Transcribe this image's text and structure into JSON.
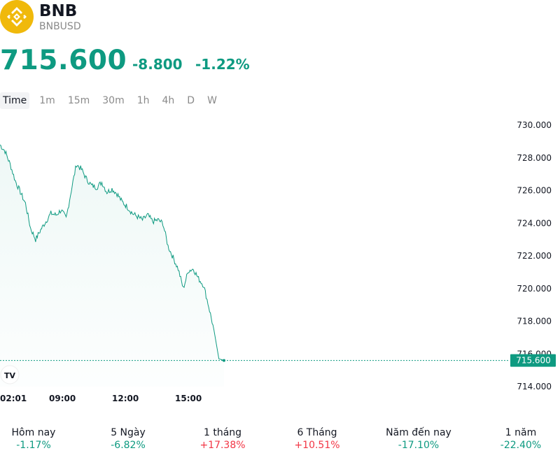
{
  "header": {
    "symbol": "BNB",
    "pair": "BNBUSD",
    "price": "715.600",
    "change": "-8.800",
    "change_pct": "-1.22%"
  },
  "colors": {
    "accent": "#0e9a81",
    "logo": "#f0b90b",
    "negative_red": "#f23645"
  },
  "tabs": [
    {
      "label": "Time",
      "active": true
    },
    {
      "label": "1m"
    },
    {
      "label": "15m"
    },
    {
      "label": "30m"
    },
    {
      "label": "1h"
    },
    {
      "label": "4h"
    },
    {
      "label": "D"
    },
    {
      "label": "W"
    }
  ],
  "chart_data": {
    "type": "area",
    "x_ticks": [
      "02:01",
      "09:00",
      "12:00",
      "15:00"
    ],
    "y_ticks": [
      "730.000",
      "728.000",
      "726.000",
      "724.000",
      "722.000",
      "720.000",
      "718.000",
      "716.000",
      "714.000"
    ],
    "ylim": [
      714,
      730
    ],
    "last_price_label": "715.600",
    "last_price": 715.6,
    "series": [
      {
        "values": [
          728.8,
          728.4,
          727.6,
          726.6,
          725.9,
          725.2,
          723.7,
          723.0,
          723.6,
          724.1,
          724.6,
          724.5,
          724.8,
          724.3,
          726.0,
          727.6,
          727.3,
          726.7,
          726.3,
          726.2,
          726.5,
          725.9,
          726.1,
          725.8,
          725.3,
          725.0,
          724.6,
          724.4,
          724.2,
          724.5,
          724.1,
          724.2,
          724.0,
          722.6,
          721.9,
          721.2,
          720.0,
          721.1,
          721.2,
          720.6,
          720.2,
          718.9,
          717.5,
          715.7,
          715.6
        ]
      }
    ]
  },
  "watermark": "TV",
  "performance": [
    {
      "label": "Hôm nay",
      "value": "-1.17%",
      "positive": false
    },
    {
      "label": "5 Ngày",
      "value": "-6.82%",
      "positive": false
    },
    {
      "label": "1 tháng",
      "value": "+17.38%",
      "positive": true
    },
    {
      "label": "6 Tháng",
      "value": "+10.51%",
      "positive": true
    },
    {
      "label": "Năm đến nay",
      "value": "-17.10%",
      "positive": false
    },
    {
      "label": "1 năm",
      "value": "-22.40%",
      "positive": false
    }
  ]
}
